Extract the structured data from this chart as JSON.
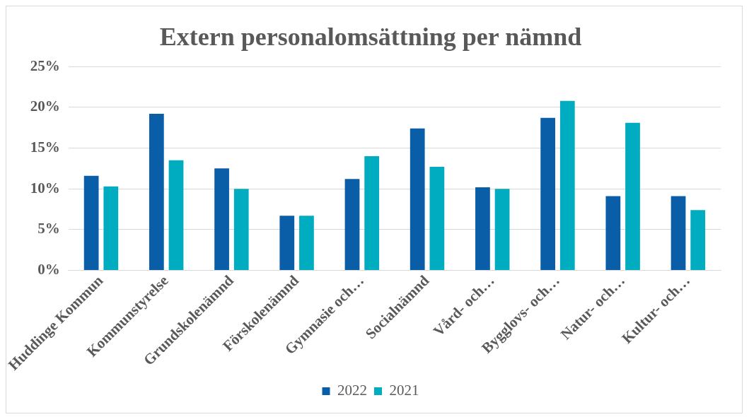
{
  "chart_data": {
    "type": "bar",
    "title": "Extern personalomsättning per nämnd",
    "categories": [
      "Huddinge Kommun",
      "Kommunstyrelse",
      "Grundskolenämnd",
      "Förskolenämnd",
      "Gymnasie och…",
      "Socialnämnd",
      "Vård- och…",
      "Bygglovs- och…",
      "Natur- och…",
      "Kultur- och…"
    ],
    "series": [
      {
        "name": "2022",
        "color": "#0a5ea8",
        "values": [
          11.6,
          19.2,
          12.5,
          6.7,
          11.2,
          17.4,
          10.2,
          18.7,
          9.1,
          9.1
        ]
      },
      {
        "name": "2021",
        "color": "#00adc0",
        "values": [
          10.3,
          13.5,
          10.0,
          6.7,
          14.0,
          12.7,
          10.0,
          20.8,
          18.1,
          7.4
        ]
      }
    ],
    "ylim": [
      0,
      25
    ],
    "yticks": [
      {
        "value": 0,
        "label": "0%"
      },
      {
        "value": 5,
        "label": "5%"
      },
      {
        "value": 10,
        "label": "10%"
      },
      {
        "value": 15,
        "label": "15%"
      },
      {
        "value": 20,
        "label": "20%"
      },
      {
        "value": 25,
        "label": "25%"
      }
    ],
    "grid": "y",
    "legend": "bottom"
  }
}
